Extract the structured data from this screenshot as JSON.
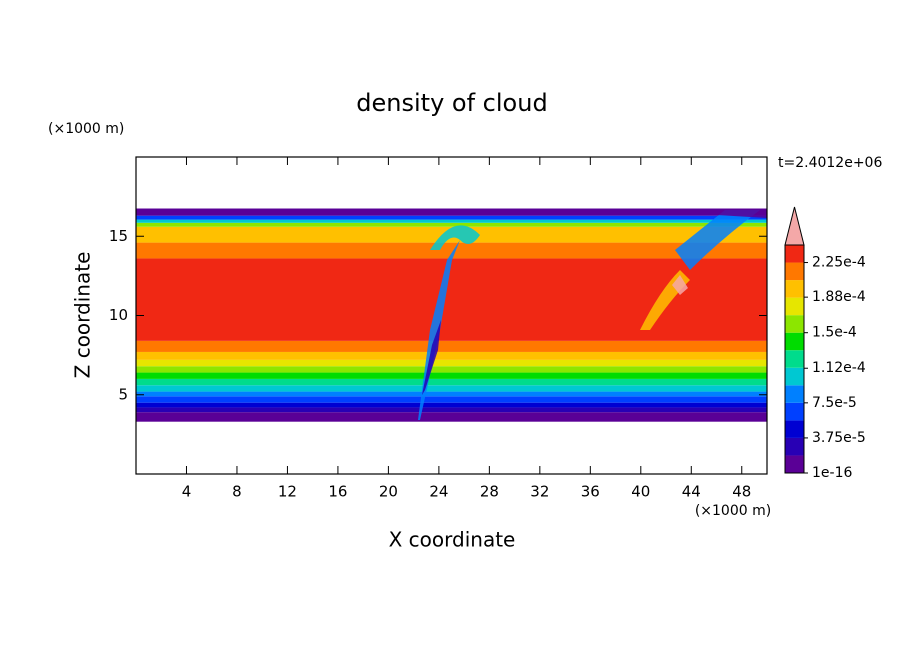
{
  "chart_data": {
    "type": "contour",
    "title": "density of cloud",
    "xlabel": "X coordinate",
    "ylabel": "Z coordinate",
    "x_unit": "(×1000 m)",
    "y_unit": "(×1000 m)",
    "annotation": "t=2.4012e+06",
    "xlim": [
      0,
      50
    ],
    "ylim": [
      0,
      20
    ],
    "xticks": [
      4,
      8,
      12,
      16,
      20,
      24,
      28,
      32,
      36,
      40,
      44,
      48
    ],
    "yticks": [
      5,
      10,
      15
    ],
    "colorbar": {
      "clim": [
        0,
        0.00024375
      ],
      "ticks": [
        {
          "value": 1e-16,
          "label": "1e-16"
        },
        {
          "value": 3.75e-05,
          "label": "3.75e-5"
        },
        {
          "value": 7.5e-05,
          "label": "7.5e-5"
        },
        {
          "value": 0.000112,
          "label": "1.12e-4"
        },
        {
          "value": 0.00015,
          "label": "1.5e-4"
        },
        {
          "value": 0.000188,
          "label": "1.88e-4"
        },
        {
          "value": 0.000225,
          "label": "2.25e-4"
        }
      ],
      "colors": [
        "#5a0096",
        "#2800b4",
        "#0000d2",
        "#0040ff",
        "#0080ff",
        "#00c8d2",
        "#00dc8c",
        "#00dc00",
        "#8ce600",
        "#e6e600",
        "#ffc000",
        "#ff7800",
        "#f02814"
      ],
      "over_color": "#f4a8a8"
    }
  }
}
